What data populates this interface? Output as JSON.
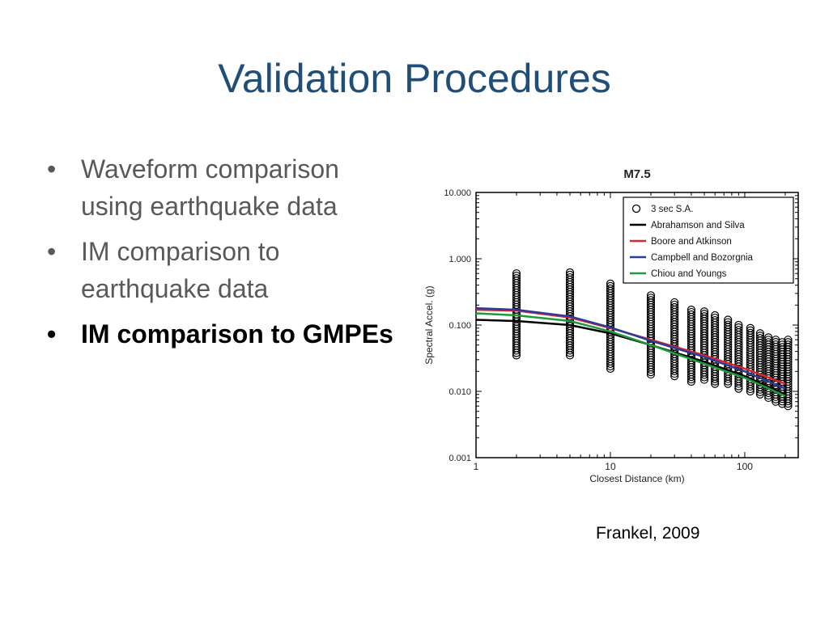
{
  "slide": {
    "title": "Validation Procedures",
    "bullets": [
      {
        "text": "Waveform comparison using earthquake data",
        "bold": false
      },
      {
        "text": "IM comparison to earthquake data",
        "bold": false
      },
      {
        "text": "IM comparison to GMPEs",
        "bold": true
      }
    ],
    "bullet_glyph": "•",
    "citation": "Frankel, 2009"
  },
  "chart_data": {
    "type": "scatter",
    "title": "M7.5",
    "xlabel": "Closest Distance (km)",
    "ylabel": "Spectral Accel. (g)",
    "xscale": "log",
    "yscale": "log",
    "xlim": [
      1,
      250
    ],
    "ylim": [
      0.001,
      10
    ],
    "x_ticks": [
      {
        "v": 1,
        "label": "1"
      },
      {
        "v": 10,
        "label": "10"
      },
      {
        "v": 100,
        "label": "100"
      }
    ],
    "y_ticks": [
      {
        "v": 10,
        "label": "10.000"
      },
      {
        "v": 1,
        "label": "1.000"
      },
      {
        "v": 0.1,
        "label": "0.100"
      },
      {
        "v": 0.01,
        "label": "0.010"
      },
      {
        "v": 0.001,
        "label": "0.001"
      }
    ],
    "legend_position": "top-right",
    "scatter": {
      "name": "3 sec S.A.",
      "color": "#000000",
      "clusters": [
        {
          "x": 2,
          "ymin": 0.035,
          "ymax": 0.6
        },
        {
          "x": 5,
          "ymin": 0.035,
          "ymax": 0.62
        },
        {
          "x": 10,
          "ymin": 0.022,
          "ymax": 0.42
        },
        {
          "x": 20,
          "ymin": 0.018,
          "ymax": 0.28
        },
        {
          "x": 30,
          "ymin": 0.017,
          "ymax": 0.22
        },
        {
          "x": 40,
          "ymin": 0.014,
          "ymax": 0.17
        },
        {
          "x": 50,
          "ymin": 0.015,
          "ymax": 0.16
        },
        {
          "x": 60,
          "ymin": 0.013,
          "ymax": 0.14
        },
        {
          "x": 75,
          "ymin": 0.013,
          "ymax": 0.12
        },
        {
          "x": 90,
          "ymin": 0.011,
          "ymax": 0.1
        },
        {
          "x": 110,
          "ymin": 0.01,
          "ymax": 0.09
        },
        {
          "x": 130,
          "ymin": 0.009,
          "ymax": 0.075
        },
        {
          "x": 150,
          "ymin": 0.008,
          "ymax": 0.065
        },
        {
          "x": 170,
          "ymin": 0.007,
          "ymax": 0.06
        },
        {
          "x": 190,
          "ymin": 0.0065,
          "ymax": 0.055
        },
        {
          "x": 210,
          "ymin": 0.006,
          "ymax": 0.06
        }
      ]
    },
    "series": [
      {
        "name": "Abrahamson and Silva",
        "color": "#000000",
        "x": [
          1,
          2,
          5,
          10,
          20,
          50,
          100,
          200
        ],
        "y": [
          0.12,
          0.115,
          0.1,
          0.075,
          0.05,
          0.028,
          0.017,
          0.009
        ]
      },
      {
        "name": "Boore and Atkinson",
        "color": "#d62828",
        "x": [
          1,
          2,
          5,
          10,
          20,
          50,
          100,
          200
        ],
        "y": [
          0.17,
          0.165,
          0.13,
          0.09,
          0.06,
          0.035,
          0.022,
          0.013
        ]
      },
      {
        "name": "Campbell and Bozorgnia",
        "color": "#2b3a9e",
        "x": [
          1,
          2,
          5,
          10,
          20,
          50,
          100,
          200
        ],
        "y": [
          0.18,
          0.17,
          0.135,
          0.092,
          0.058,
          0.033,
          0.02,
          0.011
        ]
      },
      {
        "name": "Chiou and Youngs",
        "color": "#1e9a3a",
        "x": [
          1,
          2,
          5,
          10,
          20,
          50,
          100,
          200
        ],
        "y": [
          0.15,
          0.14,
          0.115,
          0.08,
          0.05,
          0.026,
          0.016,
          0.0085
        ]
      }
    ]
  }
}
